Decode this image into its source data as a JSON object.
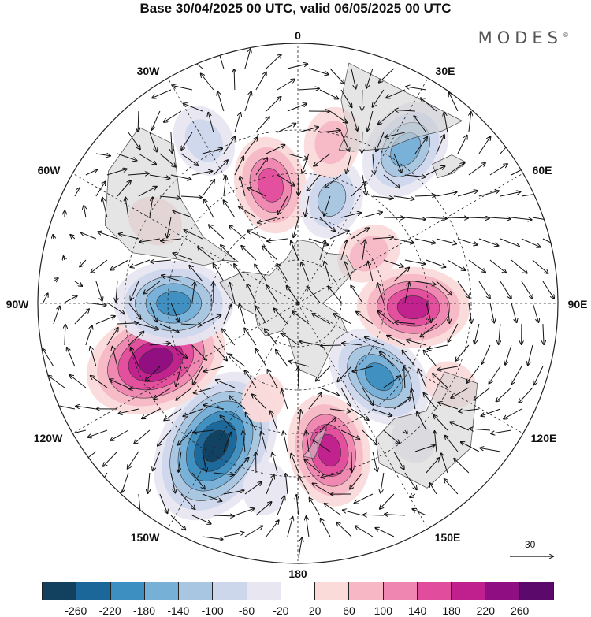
{
  "title": "Base 30/04/2025 00 UTC, valid 06/05/2025 00 UTC",
  "brand": "MODES",
  "brand_mark": "©",
  "longitude_labels": {
    "lon_0": "0",
    "lon_30e": "30E",
    "lon_60e": "60E",
    "lon_90e": "90E",
    "lon_120e": "120E",
    "lon_150e": "150E",
    "lon_180": "180",
    "lon_150w": "150W",
    "lon_120w": "120W",
    "lon_90w": "90W",
    "lon_60w": "60W",
    "lon_30w": "30W"
  },
  "reference_vector": {
    "label": "30",
    "icon": "arrow-right-icon"
  },
  "colorbar": {
    "colors": [
      "#12405f",
      "#1b679a",
      "#3d8ec1",
      "#77b0d7",
      "#a8c6e2",
      "#cdd7ec",
      "#e7e6f1",
      "#ffffff",
      "#fbdada",
      "#f7b7c5",
      "#ef86b1",
      "#e14d9c",
      "#c0208d",
      "#8f0f82",
      "#5b0a6c"
    ],
    "labels": [
      "-260",
      "-220",
      "-180",
      "-140",
      "-100",
      "-60",
      "-20",
      "20",
      "60",
      "100",
      "140",
      "180",
      "220",
      "260"
    ]
  },
  "anomaly_centers": [
    {
      "lon": 210,
      "lat": -33,
      "value": -290
    },
    {
      "lon": 248,
      "lat": -37,
      "value": 255
    },
    {
      "lon": 270,
      "lat": -47,
      "value": -200
    },
    {
      "lon": 168,
      "lat": -38,
      "value": 185
    },
    {
      "lon": 132,
      "lat": -52,
      "value": -185
    },
    {
      "lon": 92,
      "lat": -50,
      "value": 185
    },
    {
      "lon": 35,
      "lat": -25,
      "value": -165
    },
    {
      "lon": 347,
      "lat": -48,
      "value": 150
    },
    {
      "lon": 330,
      "lat": -25,
      "value": -95
    },
    {
      "lon": 18,
      "lat": -52,
      "value": -110
    },
    {
      "lon": 55,
      "lat": -60,
      "value": 80
    },
    {
      "lon": 12,
      "lat": -33,
      "value": 90
    },
    {
      "lon": 300,
      "lat": -33,
      "value": 55
    },
    {
      "lon": 190,
      "lat": -25,
      "value": -50
    },
    {
      "lon": 118,
      "lat": -30,
      "value": 50
    },
    {
      "lon": 140,
      "lat": -28,
      "value": -35
    },
    {
      "lon": 200,
      "lat": -55,
      "value": 40
    }
  ]
}
